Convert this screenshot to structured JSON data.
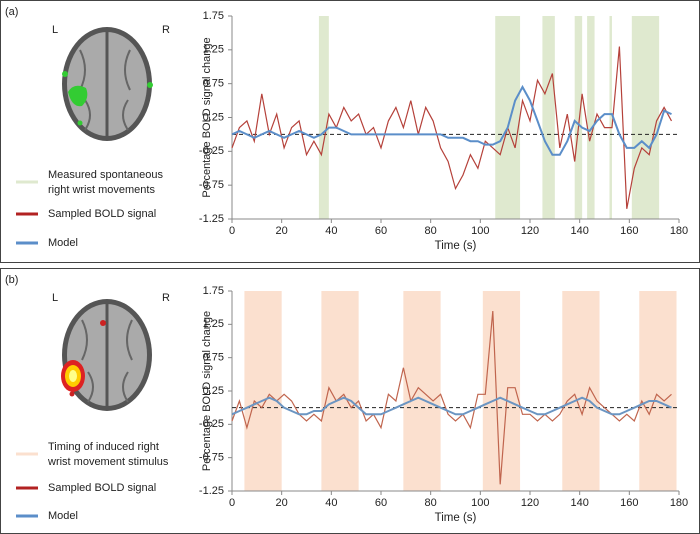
{
  "chart_data": [
    {
      "type": "line",
      "panel_label": "(a)",
      "hemisphere_labels": [
        "L",
        "R"
      ],
      "x_label": "Time (s)",
      "y_label": "Percentage BOLD signal change",
      "xlim": [
        0,
        180
      ],
      "ylim": [
        -1.25,
        1.75
      ],
      "xticks": [
        0,
        20,
        40,
        60,
        80,
        100,
        120,
        140,
        160,
        180
      ],
      "yticks": [
        -1.25,
        -0.75,
        -0.25,
        0.25,
        0.75,
        1.25,
        1.75
      ],
      "baseline": 0,
      "shaded": {
        "name": [
          "Measured spontaneous",
          "right wrist movements"
        ],
        "color": "#dfe9cf",
        "intervals": [
          [
            35,
            39
          ],
          [
            106,
            116
          ],
          [
            125,
            130
          ],
          [
            138,
            141
          ],
          [
            143,
            146
          ],
          [
            152,
            153
          ],
          [
            161,
            172
          ]
        ]
      },
      "x": [
        0,
        3,
        6,
        9,
        12,
        15,
        18,
        21,
        24,
        27,
        30,
        33,
        36,
        39,
        42,
        45,
        48,
        51,
        54,
        57,
        60,
        63,
        66,
        69,
        72,
        75,
        78,
        81,
        84,
        87,
        90,
        93,
        96,
        99,
        102,
        105,
        108,
        111,
        114,
        117,
        120,
        123,
        126,
        129,
        132,
        135,
        138,
        141,
        144,
        147,
        150,
        153,
        156,
        159,
        162,
        165,
        168,
        171,
        174,
        177
      ],
      "series": [
        {
          "name": "Sampled BOLD signal",
          "color": "#b5413a",
          "legend_color": "#b22222",
          "values": [
            -0.2,
            0.1,
            0.2,
            -0.1,
            0.6,
            0,
            0.3,
            -0.2,
            0.1,
            0.2,
            -0.3,
            -0.1,
            -0.3,
            0.3,
            0.1,
            0.4,
            0.2,
            0.3,
            0,
            0.1,
            -0.2,
            0.2,
            0.4,
            0.1,
            0.5,
            0,
            0.4,
            0.2,
            -0.2,
            -0.4,
            -0.8,
            -0.6,
            -0.3,
            -0.5,
            -0.1,
            -0.2,
            -0.3,
            0.1,
            -0.2,
            0.5,
            0.2,
            0.8,
            0.6,
            0.9,
            -0.2,
            0.3,
            -0.4,
            0.6,
            -0.1,
            0.3,
            0.1,
            0.1,
            1.3,
            -1.1,
            -0.5,
            -0.2,
            -0.3,
            0.2,
            0.4,
            0.2
          ]
        },
        {
          "name": "Model",
          "color": "#5b8ec9",
          "legend_color": "#5b8ec9",
          "values": [
            0,
            0.05,
            0,
            -0.05,
            0,
            0.05,
            0,
            -0.05,
            0,
            0.05,
            0,
            -0.05,
            0,
            0.1,
            0.1,
            0.05,
            0,
            0,
            0,
            0,
            0,
            0,
            0,
            0,
            0,
            0,
            0,
            0,
            0,
            -0.05,
            -0.05,
            -0.05,
            -0.1,
            -0.1,
            -0.15,
            -0.15,
            -0.1,
            0.1,
            0.5,
            0.7,
            0.5,
            0.2,
            -0.1,
            -0.3,
            -0.3,
            -0.1,
            0.2,
            0.1,
            0.05,
            0.2,
            0.3,
            0.3,
            0,
            -0.2,
            -0.2,
            -0.1,
            -0.2,
            0,
            0.35,
            0.3
          ]
        }
      ]
    },
    {
      "type": "line",
      "panel_label": "(b)",
      "hemisphere_labels": [
        "L",
        "R"
      ],
      "x_label": "Time (s)",
      "y_label": "Percentage BOLD signal change",
      "xlim": [
        0,
        180
      ],
      "ylim": [
        -1.25,
        1.75
      ],
      "xticks": [
        0,
        20,
        40,
        60,
        80,
        100,
        120,
        140,
        160,
        180
      ],
      "yticks": [
        -1.25,
        -0.75,
        -0.25,
        0.25,
        0.75,
        1.25,
        1.75
      ],
      "baseline": 0,
      "shaded": {
        "name": [
          "Timing of induced right",
          "wrist movement stimulus"
        ],
        "color": "#fbe0cf",
        "intervals": [
          [
            5,
            20
          ],
          [
            36,
            51
          ],
          [
            69,
            84
          ],
          [
            101,
            116
          ],
          [
            133,
            148
          ],
          [
            164,
            179
          ]
        ]
      },
      "x": [
        0,
        3,
        6,
        9,
        12,
        15,
        18,
        21,
        24,
        27,
        30,
        33,
        36,
        39,
        42,
        45,
        48,
        51,
        54,
        57,
        60,
        63,
        66,
        69,
        72,
        75,
        78,
        81,
        84,
        87,
        90,
        93,
        96,
        99,
        102,
        105,
        108,
        111,
        114,
        117,
        120,
        123,
        126,
        129,
        132,
        135,
        138,
        141,
        144,
        147,
        150,
        153,
        156,
        159,
        162,
        165,
        168,
        171,
        174,
        177
      ],
      "series": [
        {
          "name": "Sampled BOLD signal",
          "color": "#c0654e",
          "legend_color": "#b22222",
          "values": [
            -0.2,
            0.1,
            -0.3,
            0.1,
            0,
            0.2,
            0.1,
            0.2,
            0.1,
            -0.1,
            -0.2,
            -0.1,
            -0.2,
            0.3,
            0.1,
            0.2,
            0,
            0.1,
            -0.2,
            -0.1,
            -0.3,
            0.2,
            0.1,
            0.6,
            0.1,
            0.3,
            0.2,
            0.1,
            0.2,
            -0.1,
            -0.2,
            -0.1,
            -0.3,
            0.2,
            0.2,
            1.45,
            -1.15,
            0.3,
            0.3,
            -0.1,
            -0.1,
            -0.2,
            -0.1,
            -0.2,
            -0.1,
            0.1,
            0.2,
            -0.1,
            0.3,
            0.1,
            0,
            -0.1,
            -0.2,
            -0.1,
            -0.2,
            0.1,
            -0.1,
            0.2,
            0.1,
            0.2
          ]
        },
        {
          "name": "Model",
          "color": "#6b95c2",
          "legend_color": "#5b8ec9",
          "values": [
            -0.1,
            -0.05,
            0,
            0.05,
            0.1,
            0.15,
            0.1,
            0,
            -0.05,
            -0.1,
            -0.1,
            -0.05,
            -0.05,
            0.05,
            0.1,
            0.15,
            0.1,
            0,
            -0.1,
            -0.1,
            -0.1,
            -0.05,
            0,
            0.05,
            0.1,
            0.15,
            0.1,
            0.05,
            0,
            -0.05,
            -0.1,
            -0.1,
            -0.05,
            0,
            0.05,
            0.1,
            0.15,
            0.1,
            0.05,
            0,
            -0.05,
            -0.1,
            -0.1,
            -0.05,
            0,
            0.05,
            0.1,
            0.15,
            0.1,
            0,
            -0.05,
            -0.1,
            -0.1,
            -0.05,
            0,
            0.05,
            0.1,
            0.1,
            0.05,
            0
          ]
        }
      ]
    }
  ]
}
